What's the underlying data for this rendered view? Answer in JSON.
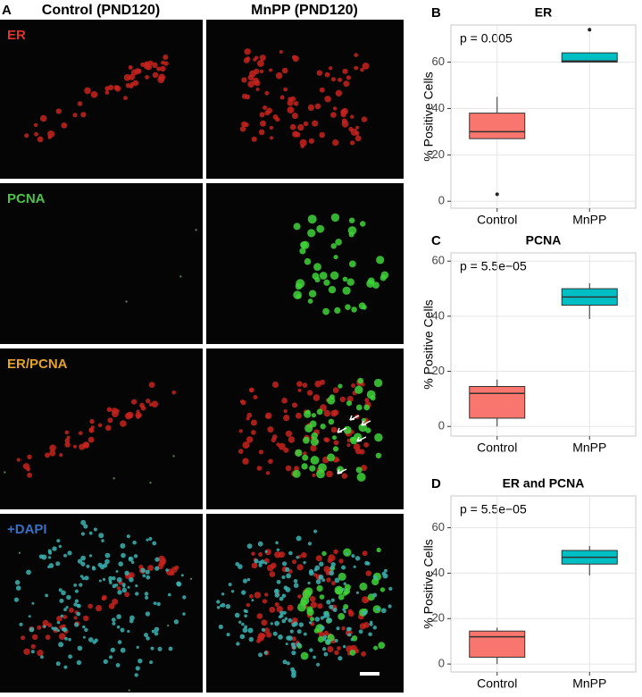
{
  "panel_a": {
    "label": "A",
    "columns": [
      "Control (PND120)",
      "MnPP (PND120)"
    ],
    "rows": [
      "ER",
      "PCNA",
      "ER/PCNA",
      "+DAPI"
    ]
  },
  "chart_data": [
    {
      "type": "box",
      "panel": "B",
      "title": "ER",
      "annotation": "p = 0.005",
      "y_label": "% Positive Cells",
      "categories": [
        "Control",
        "MnPP"
      ],
      "colors": [
        "#f8766d",
        "#00bfc4"
      ],
      "boxes": [
        {
          "whisker_low": 27,
          "q1": 27,
          "median": 30,
          "q3": 38,
          "whisker_high": 45,
          "outliers": [
            3
          ]
        },
        {
          "whisker_low": 60,
          "q1": 60,
          "median": 60.5,
          "q3": 64,
          "whisker_high": 64,
          "outliers": [
            74
          ]
        }
      ],
      "ylim": [
        -3,
        76
      ],
      "yticks": [
        0,
        20,
        40,
        60
      ],
      "grid": true
    },
    {
      "type": "box",
      "panel": "C",
      "title": "PCNA",
      "annotation": "p = 5.5e−05",
      "y_label": "% Positive Cells",
      "categories": [
        "Control",
        "MnPP"
      ],
      "colors": [
        "#f8766d",
        "#00bfc4"
      ],
      "boxes": [
        {
          "whisker_low": 0,
          "q1": 3,
          "median": 12,
          "q3": 14.5,
          "whisker_high": 17,
          "outliers": []
        },
        {
          "whisker_low": 39,
          "q1": 44,
          "median": 47,
          "q3": 50,
          "whisker_high": 52,
          "outliers": []
        }
      ],
      "ylim": [
        -3.5,
        63
      ],
      "yticks": [
        0,
        20,
        40,
        60
      ],
      "grid": true
    },
    {
      "type": "box",
      "panel": "D",
      "title": "ER and PCNA",
      "annotation": "p = 5.5e−05",
      "y_label": "% Positive Cells",
      "categories": [
        "Control",
        "MnPP"
      ],
      "colors": [
        "#f8766d",
        "#00bfc4"
      ],
      "boxes": [
        {
          "whisker_low": 0,
          "q1": 3,
          "median": 12,
          "q3": 14.5,
          "whisker_high": 16,
          "outliers": []
        },
        {
          "whisker_low": 39,
          "q1": 44,
          "median": 47,
          "q3": 50,
          "whisker_high": 52,
          "outliers": []
        }
      ],
      "ylim": [
        -3.5,
        74
      ],
      "yticks": [
        0,
        20,
        40,
        60
      ],
      "grid": true
    }
  ]
}
